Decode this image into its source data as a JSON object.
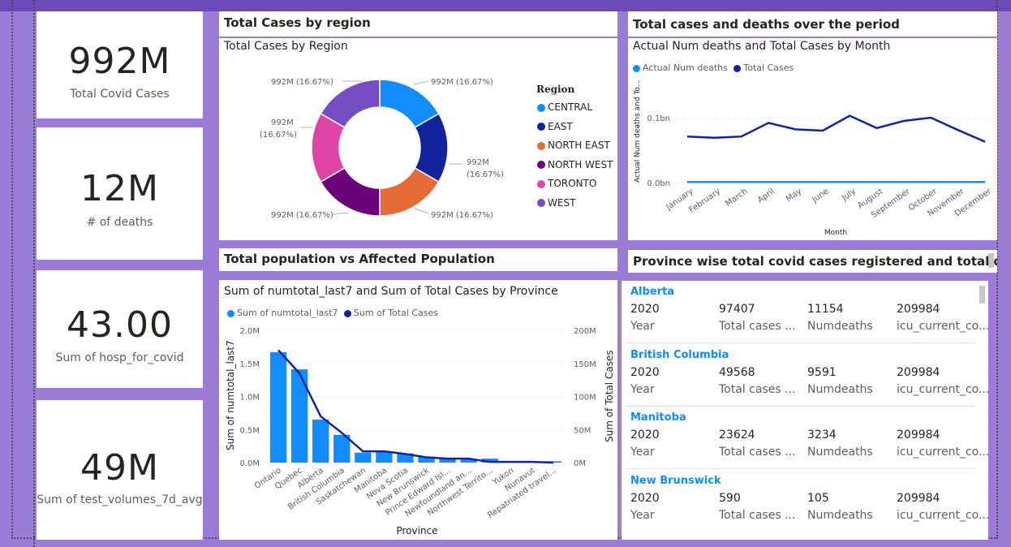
{
  "kpis": [
    {
      "value": "992M",
      "label": "Total Covid Cases"
    },
    {
      "value": "12M",
      "label": "# of deaths"
    },
    {
      "value": "43.00",
      "label": "Sum of hosp_for_covid"
    },
    {
      "value": "49M",
      "label": "Sum of test_volumes_7d_avg"
    }
  ],
  "headers": {
    "region": "Total Cases by region",
    "period": "Total cases and deaths over the period",
    "population": "Total population vs Affected Population",
    "province": "Province wise total covid cases registered and total deaths in"
  },
  "donut": {
    "title": "Total Cases by Region",
    "legend_title": "Region",
    "slice_label": "992M (16.67%)",
    "slice_label_value": "992M",
    "slice_label_pct": "(16.67%)",
    "regions": [
      {
        "name": "CENTRAL",
        "value": 992,
        "color": "#118DFF"
      },
      {
        "name": "EAST",
        "value": 992,
        "color": "#12239E"
      },
      {
        "name": "NORTH EAST",
        "value": 992,
        "color": "#E66C37"
      },
      {
        "name": "NORTH WEST",
        "value": 992,
        "color": "#6B007B"
      },
      {
        "name": "TORONTO",
        "value": 992,
        "color": "#E044A7"
      },
      {
        "name": "WEST",
        "value": 992,
        "color": "#744EC2"
      }
    ]
  },
  "line_chart": {
    "title": "Actual Num deaths and Total Cases by Month",
    "xlabel": "Month",
    "ylabel": "Actual Num deaths and To...",
    "yticks": [
      "0.0bn",
      "0.1bn"
    ],
    "legend": [
      {
        "name": "Actual Num deaths",
        "color": "#118DFF"
      },
      {
        "name": "Total Cases",
        "color": "#12239E"
      }
    ]
  },
  "combo_chart": {
    "title": "Sum of numtotal_last7 and Sum of Total Cases by Province",
    "xlabel": "Province",
    "ylabel_left": "Sum of numtotal_last7",
    "ylabel_right": "Sum of Total Cases",
    "yticks_left": [
      "0.0M",
      "0.5M",
      "1.0M",
      "1.5M",
      "2.0M"
    ],
    "yticks_right": [
      "0M",
      "50M",
      "100M",
      "150M",
      "200M"
    ],
    "legend": [
      {
        "name": "Sum of numtotal_last7",
        "color": "#118DFF"
      },
      {
        "name": "Sum of Total Cases",
        "color": "#12239E"
      }
    ]
  },
  "chart_data": [
    {
      "type": "pie",
      "title": "Total Cases by Region",
      "categories": [
        "CENTRAL",
        "EAST",
        "NORTH EAST",
        "NORTH WEST",
        "TORONTO",
        "WEST"
      ],
      "values": [
        992,
        992,
        992,
        992,
        992,
        992
      ],
      "unit": "M",
      "legend": "right"
    },
    {
      "type": "line",
      "title": "Actual Num deaths and Total Cases by Month",
      "xlabel": "Month",
      "ylabel": "Actual Num deaths and To...",
      "categories": [
        "January",
        "February",
        "March",
        "April",
        "May",
        "June",
        "July",
        "August",
        "September",
        "October",
        "November",
        "December"
      ],
      "series": [
        {
          "name": "Actual Num deaths",
          "values": [
            0.001,
            0.001,
            0.001,
            0.001,
            0.001,
            0.001,
            0.001,
            0.001,
            0.001,
            0.001,
            0.001,
            0.001
          ]
        },
        {
          "name": "Total Cases",
          "values": [
            0.071,
            0.069,
            0.071,
            0.092,
            0.082,
            0.08,
            0.103,
            0.084,
            0.095,
            0.1,
            0.081,
            0.063
          ]
        }
      ],
      "ylim": [
        0,
        0.13
      ],
      "yunit": "bn",
      "legend": "top-left"
    },
    {
      "type": "bar",
      "title": "Sum of numtotal_last7 and Sum of Total Cases by Province",
      "xlabel": "Province",
      "categories": [
        "Ontario",
        "Quebec",
        "Alberta",
        "British Columbia",
        "Saskatchewan",
        "Manitoba",
        "Nova Scotia",
        "New Brunswick",
        "Prince Edward Isl...",
        "Newfoundland an...",
        "Northwest Territo...",
        "Yukon",
        "Nunavut",
        "Repatriated travel..."
      ],
      "series": [
        {
          "name": "Sum of numtotal_last7",
          "axis": "left",
          "unit": "M",
          "values": [
            1.67,
            1.41,
            0.65,
            0.42,
            0.15,
            0.16,
            0.14,
            0.09,
            0.07,
            0.06,
            0.06,
            0.01,
            0.01,
            0.02
          ]
        },
        {
          "name": "Sum of Total Cases",
          "axis": "right",
          "unit": "M",
          "values": [
            170,
            135,
            70,
            45,
            17,
            17,
            13,
            8,
            6,
            6,
            1,
            1,
            1,
            0
          ]
        }
      ],
      "ylim_left": [
        0,
        2.0
      ],
      "ylim_right": [
        0,
        200
      ],
      "legend": "top-left"
    }
  ],
  "provinces": {
    "labels": [
      "Year",
      "Total cases ...",
      "Numdeaths",
      "icu_current_co..."
    ],
    "items": [
      {
        "name": "Alberta",
        "year": "2020",
        "total_cases": "97407",
        "numdeaths": "11154",
        "icu": "209984"
      },
      {
        "name": "British Columbia",
        "year": "2020",
        "total_cases": "49568",
        "numdeaths": "9591",
        "icu": "209984"
      },
      {
        "name": "Manitoba",
        "year": "2020",
        "total_cases": "23624",
        "numdeaths": "3234",
        "icu": "209984"
      },
      {
        "name": "New Brunswick",
        "year": "2020",
        "total_cases": "590",
        "numdeaths": "105",
        "icu": "209984"
      }
    ]
  }
}
